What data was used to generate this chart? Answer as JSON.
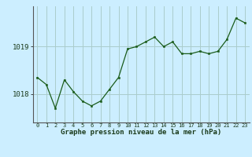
{
  "x": [
    0,
    1,
    2,
    3,
    4,
    5,
    6,
    7,
    8,
    9,
    10,
    11,
    12,
    13,
    14,
    15,
    16,
    17,
    18,
    19,
    20,
    21,
    22,
    23
  ],
  "y": [
    1018.35,
    1018.2,
    1017.7,
    1018.3,
    1018.05,
    1017.85,
    1017.75,
    1017.85,
    1018.1,
    1018.35,
    1018.95,
    1019.0,
    1019.1,
    1019.2,
    1019.0,
    1019.1,
    1018.85,
    1018.85,
    1018.9,
    1018.85,
    1018.9,
    1019.15,
    1019.6,
    1019.5
  ],
  "yticks": [
    1018,
    1019
  ],
  "xticks": [
    0,
    1,
    2,
    3,
    4,
    5,
    6,
    7,
    8,
    9,
    10,
    11,
    12,
    13,
    14,
    15,
    16,
    17,
    18,
    19,
    20,
    21,
    22,
    23
  ],
  "xlabel": "Graphe pression niveau de la mer (hPa)",
  "line_color": "#1a5c1a",
  "marker_color": "#1a5c1a",
  "bg_color": "#cceeff",
  "grid_color": "#aacccc",
  "ylim": [
    1017.4,
    1019.85
  ],
  "xlim": [
    -0.5,
    23.5
  ]
}
